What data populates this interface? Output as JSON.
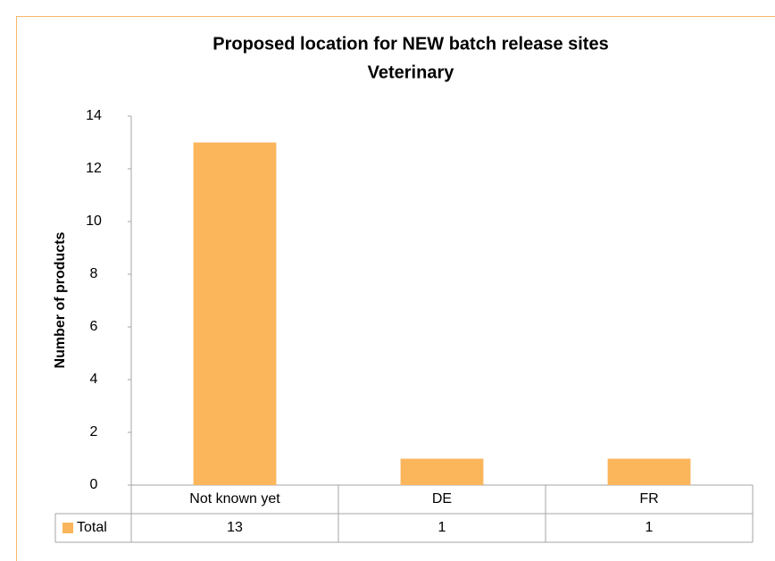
{
  "chart_data": {
    "type": "bar",
    "title": "Proposed location for NEW batch release sites",
    "subtitle": "Veterinary",
    "y_label": "Number of products",
    "categories": [
      "Not known yet",
      "DE",
      "FR"
    ],
    "series": [
      {
        "name": "Total",
        "color": "#fbb55b",
        "values": [
          13,
          1,
          1
        ]
      }
    ],
    "ylim": [
      0,
      14
    ],
    "yticks": [
      0,
      2,
      4,
      6,
      8,
      10,
      12,
      14
    ],
    "grid": false,
    "legend": "data-table"
  }
}
